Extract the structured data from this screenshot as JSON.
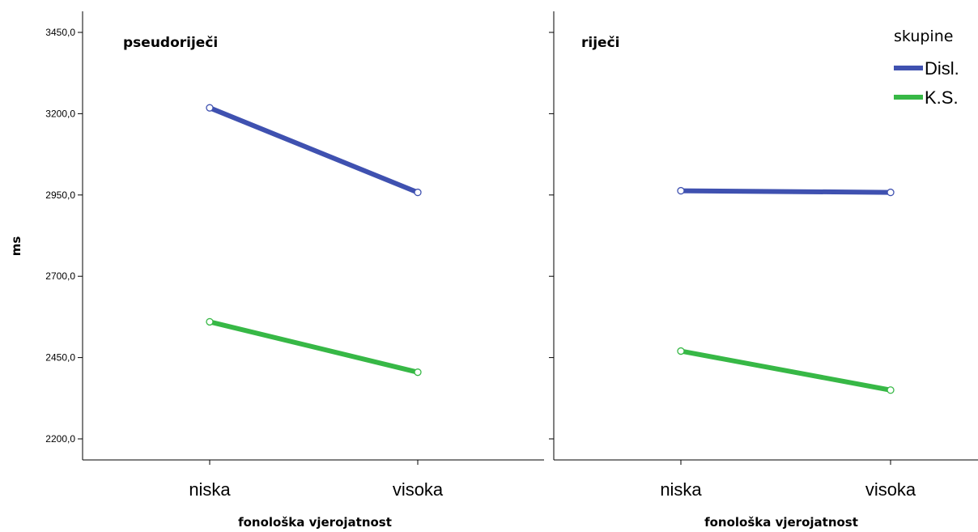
{
  "chart_data": {
    "type": "line",
    "ylabel": "ms",
    "ylim": [
      2200,
      3450
    ],
    "yticks": [
      2200,
      2450,
      2700,
      2950,
      3200,
      3450
    ],
    "ytick_labels": [
      "2200,0",
      "2450,0",
      "2700,0",
      "2950,0",
      "3200,0",
      "3450,0"
    ],
    "categories": [
      "niska",
      "visoka"
    ],
    "legend": {
      "title": "skupine",
      "placement": "top-right",
      "entries": [
        {
          "name": "Disl.",
          "color": "#3f51b0"
        },
        {
          "name": "K.S.",
          "color": "#37b846"
        }
      ]
    },
    "panels": [
      {
        "title": "pseudoriječi",
        "xlabel": "fonološka vjerojatnost",
        "series": [
          {
            "name": "Disl.",
            "color": "#3f51b0",
            "values": [
              3218,
              2958
            ]
          },
          {
            "name": "K.S.",
            "color": "#37b846",
            "values": [
              2560,
              2405
            ]
          }
        ]
      },
      {
        "title": "riječi",
        "xlabel": "fonološka vjerojatnost",
        "series": [
          {
            "name": "Disl.",
            "color": "#3f51b0",
            "values": [
              2963,
              2958
            ]
          },
          {
            "name": "K.S.",
            "color": "#37b846",
            "values": [
              2470,
              2350
            ]
          }
        ]
      }
    ]
  }
}
